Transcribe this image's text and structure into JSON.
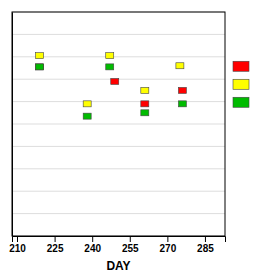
{
  "chart_data": {
    "type": "scatter",
    "xlabel": "DAY",
    "x": [
      219,
      238,
      247,
      249,
      261,
      275,
      276
    ],
    "series": [
      {
        "color": "#ff0000",
        "values": [
          7.55,
          null,
          null,
          6.9,
          5.9,
          null,
          6.5
        ]
      },
      {
        "color": "#ffff00",
        "values": [
          8.05,
          5.9,
          8.05,
          null,
          6.5,
          7.6,
          null
        ]
      },
      {
        "color": "#00bb00",
        "values": [
          7.55,
          5.35,
          7.55,
          null,
          5.5,
          null,
          5.9
        ]
      }
    ],
    "xlim": [
      208,
      293
    ],
    "xticks": [
      210,
      225,
      240,
      255,
      270,
      285
    ],
    "ylim": [
      0,
      10
    ],
    "yticks": [
      0,
      1,
      2,
      3,
      4,
      5,
      6,
      7,
      8,
      9,
      10
    ],
    "grid": true,
    "tick_labels": "x",
    "legend": "right"
  }
}
